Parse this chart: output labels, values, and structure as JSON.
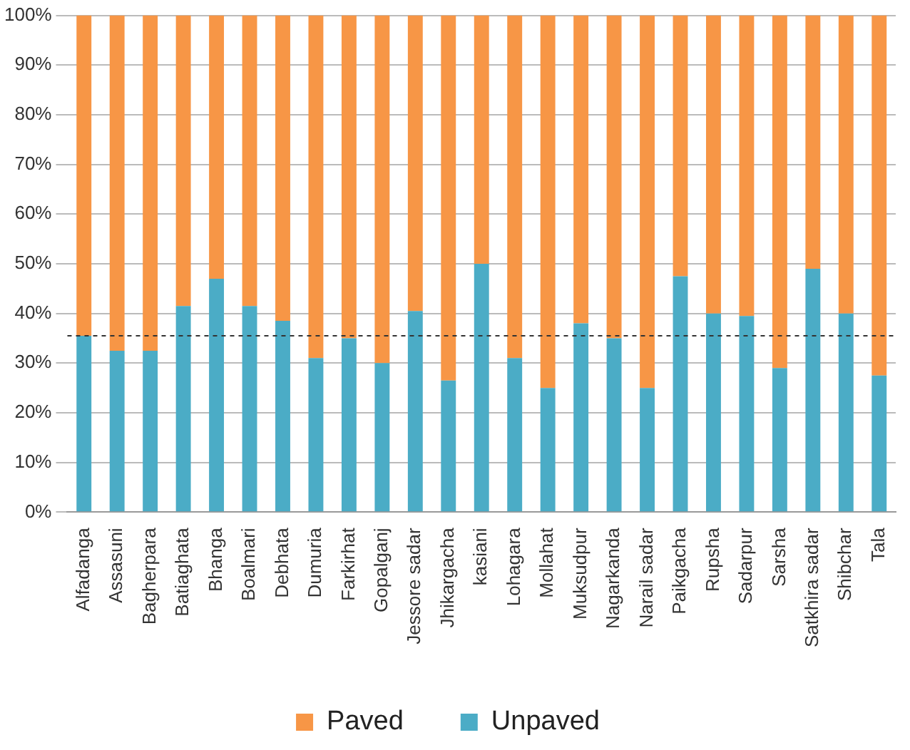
{
  "chart_data": {
    "type": "bar",
    "stacked": true,
    "categories": [
      "Alfadanga",
      "Assasuni",
      "Bagherpara",
      "Batiaghata",
      "Bhanga",
      "Boalmari",
      "Debhata",
      "Dumuria",
      "Farkirhat",
      "Gopalganj",
      "Jessore sadar",
      "Jhikargacha",
      "kasiani",
      "Lohagara",
      "Mollahat",
      "Muksudpur",
      "Nagarkanda",
      "Narail sadar",
      "Paikgacha",
      "Rupsha",
      "Sadarpur",
      "Sarsha",
      "Satkhira sadar",
      "Shibchar",
      "Tala"
    ],
    "series": [
      {
        "name": "Unpaved",
        "color": "#4bacc6",
        "values": [
          35.5,
          32.5,
          32.5,
          41.5,
          47,
          41.5,
          38.5,
          31,
          35,
          30,
          40.5,
          26.5,
          50,
          31,
          25,
          38,
          35,
          25,
          47.5,
          40,
          39.5,
          29,
          49,
          40,
          27.5
        ]
      },
      {
        "name": "Paved",
        "color": "#f79646",
        "values": [
          64.5,
          67.5,
          67.5,
          58.5,
          53,
          58.5,
          61.5,
          69,
          65,
          70,
          59.5,
          73.5,
          50,
          69,
          75,
          62,
          65,
          75,
          52.5,
          60,
          60.5,
          71,
          51,
          60,
          72.5
        ]
      }
    ],
    "ylim": [
      0,
      100
    ],
    "yticks": [
      {
        "value": 0,
        "label": "0%"
      },
      {
        "value": 10,
        "label": "10%"
      },
      {
        "value": 20,
        "label": "20%"
      },
      {
        "value": 30,
        "label": "30%"
      },
      {
        "value": 40,
        "label": "40%"
      },
      {
        "value": 50,
        "label": "50%"
      },
      {
        "value": 60,
        "label": "60%"
      },
      {
        "value": 70,
        "label": "70%"
      },
      {
        "value": 80,
        "label": "80%"
      },
      {
        "value": 90,
        "label": "90%"
      },
      {
        "value": 100,
        "label": "100%"
      }
    ],
    "grid": "y",
    "legend": "bottom",
    "ref_lines": [
      {
        "axis": "y",
        "value": 35.5,
        "color": "#333333",
        "line_style": "dashed"
      }
    ]
  }
}
